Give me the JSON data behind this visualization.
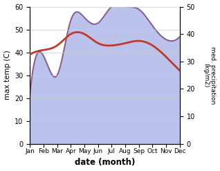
{
  "months": [
    "Jan",
    "Feb",
    "Mar",
    "Apr",
    "May",
    "Jun",
    "Jul",
    "Aug",
    "Sep",
    "Oct",
    "Nov",
    "Dec"
  ],
  "month_indices": [
    0,
    1,
    2,
    3,
    4,
    5,
    6,
    7,
    8,
    9,
    10,
    11
  ],
  "temperature": [
    39,
    41,
    43,
    48,
    48,
    44,
    43,
    44,
    45,
    43,
    38,
    32
  ],
  "precipitation": [
    18,
    32,
    25,
    45,
    46,
    44,
    50,
    50,
    49,
    43,
    38,
    39
  ],
  "temp_color": "#c0392b",
  "precip_color": "#8b6090",
  "precip_fill_color": "#b0b8e8",
  "precip_fill_alpha": 0.85,
  "ylabel_left": "max temp (C)",
  "ylabel_right": "med. precipitation\n(kg/m2)",
  "xlabel": "date (month)",
  "ylim_left": [
    0,
    60
  ],
  "ylim_right": [
    0,
    50
  ],
  "yticks_left": [
    0,
    10,
    20,
    30,
    40,
    50,
    60
  ],
  "yticks_right": [
    0,
    10,
    20,
    30,
    40,
    50
  ],
  "background_color": "#ffffff",
  "grid_color": "#cccccc"
}
